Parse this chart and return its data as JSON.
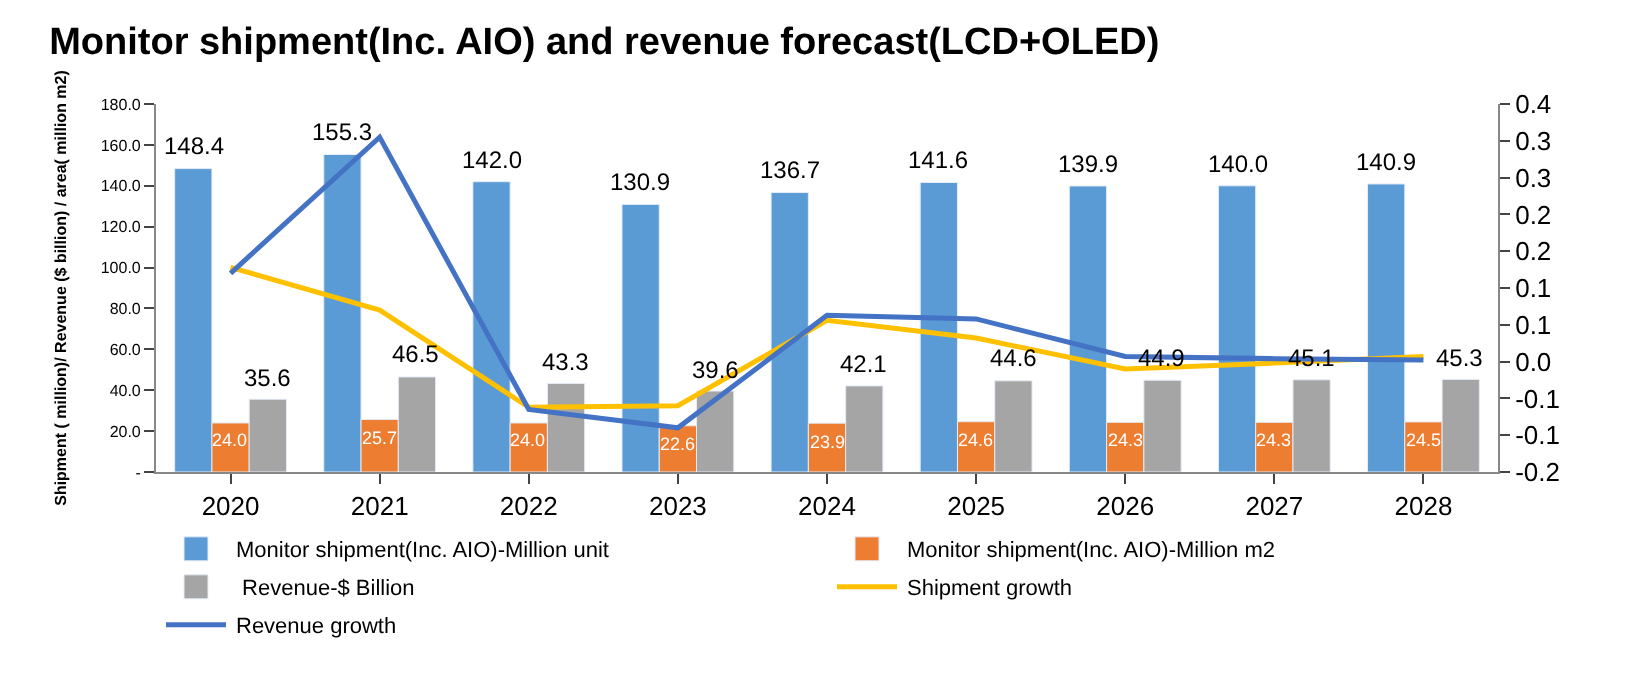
{
  "chart_data": {
    "type": "bar",
    "title": "Monitor shipment(Inc. AIO) and revenue forecast(LCD+OLED)",
    "ylabel": "Shipment ( million)/ Revenue ($ billion) / area( million m2)",
    "categories": [
      "2020",
      "2021",
      "2022",
      "2023",
      "2024",
      "2025",
      "2026",
      "2027",
      "2028"
    ],
    "series": [
      {
        "name": "Monitor shipment(Inc. AIO)-Million unit",
        "color": "#5b9bd5",
        "values": [
          148.4,
          155.3,
          142.0,
          130.9,
          136.7,
          141.6,
          139.9,
          140.0,
          140.9
        ],
        "value_labels": [
          "148.4",
          "155.3",
          "142.0",
          "130.9",
          "136.7",
          "141.6",
          "139.9",
          "140.0",
          "140.9"
        ]
      },
      {
        "name": "Monitor shipment(Inc. AIO)-Million m2",
        "color": "#ed7d31",
        "values": [
          24.0,
          25.7,
          24.0,
          22.6,
          23.9,
          24.6,
          24.3,
          24.3,
          24.5
        ],
        "value_labels": [
          "24.0",
          "25.7",
          "24.0",
          "22.6",
          "23.9",
          "24.6",
          "24.3",
          "24.3",
          "24.5"
        ]
      },
      {
        "name": " Revenue-$ Billion",
        "color": "#a5a5a5",
        "values": [
          35.6,
          46.5,
          43.3,
          39.6,
          42.1,
          44.6,
          44.9,
          45.1,
          45.3
        ],
        "value_labels": [
          "35.6",
          "46.5",
          "43.3",
          "39.6",
          "42.1",
          "44.6",
          "44.9",
          "45.1",
          "45.3"
        ]
      },
      {
        "name": "Shipment growth",
        "type": "line",
        "axis": "y2",
        "color": "#ffc000",
        "values": [
          0.128,
          0.07,
          -0.062,
          -0.06,
          0.056,
          0.032,
          -0.01,
          -0.002,
          0.007
        ]
      },
      {
        "name": "Revenue growth",
        "type": "line",
        "axis": "y2",
        "color": "#4472c4",
        "values": [
          0.12,
          0.305,
          -0.065,
          -0.09,
          0.063,
          0.058,
          0.007,
          0.004,
          0.002
        ]
      }
    ],
    "ylim": [
      0,
      180
    ],
    "yticks": [
      {
        "value": 0,
        "label": "-"
      },
      {
        "value": 20,
        "label": "20.0"
      },
      {
        "value": 40,
        "label": "40.0"
      },
      {
        "value": 60,
        "label": "60.0"
      },
      {
        "value": 80,
        "label": "80.0"
      },
      {
        "value": 100,
        "label": "100.0"
      },
      {
        "value": 120,
        "label": "120.0"
      },
      {
        "value": 140,
        "label": "140.0"
      },
      {
        "value": 160,
        "label": "160.0"
      },
      {
        "value": 180,
        "label": "180.0"
      }
    ],
    "y2lim": [
      -0.15,
      0.35
    ],
    "y2ticks": [
      {
        "value": -0.15,
        "label": "-0.2"
      },
      {
        "value": -0.1,
        "label": "-0.1"
      },
      {
        "value": -0.05,
        "label": "-0.1"
      },
      {
        "value": 0,
        "label": "0.0"
      },
      {
        "value": 0.05,
        "label": "0.1"
      },
      {
        "value": 0.1,
        "label": "0.1"
      },
      {
        "value": 0.15,
        "label": "0.2"
      },
      {
        "value": 0.2,
        "label": "0.2"
      },
      {
        "value": 0.25,
        "label": "0.3"
      },
      {
        "value": 0.3,
        "label": "0.3"
      },
      {
        "value": 0.35,
        "label": "0.4"
      }
    ],
    "legend": "bottom",
    "marker": "none",
    "line_style": "solid"
  }
}
